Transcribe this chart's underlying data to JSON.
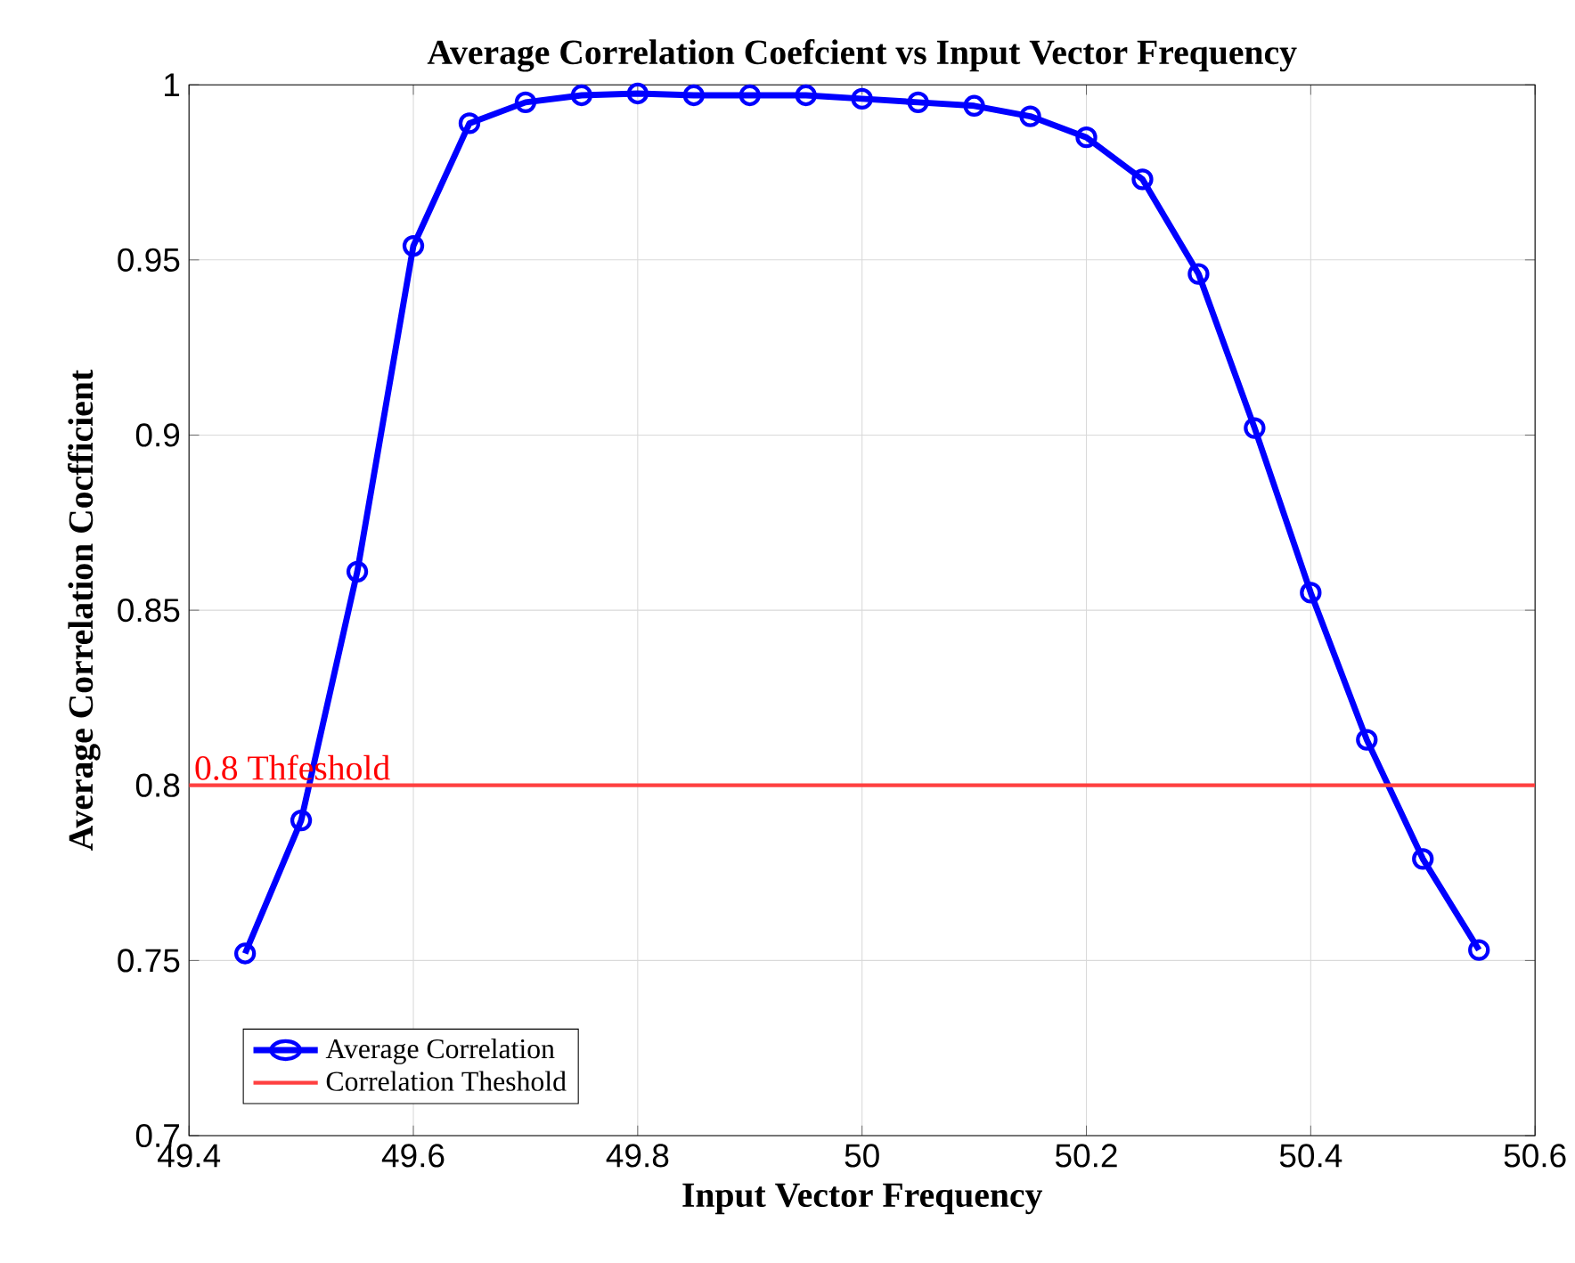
{
  "chart_data": {
    "type": "line",
    "title": "Average Correlation Coefcient vs Input Vector Frequency",
    "xlabel": "Input Vector Frequency",
    "ylabel": "Average Correlation Cocfficient",
    "x": [
      49.45,
      49.5,
      49.55,
      49.6,
      49.65,
      49.7,
      49.75,
      49.8,
      49.85,
      49.9,
      49.95,
      50.0,
      50.05,
      50.1,
      50.15,
      50.2,
      50.25,
      50.3,
      50.35,
      50.4,
      50.45,
      50.5,
      50.55
    ],
    "series": [
      {
        "name": "Average Correlation",
        "color": "#0000ff",
        "marker": "circle",
        "values": [
          0.752,
          0.79,
          0.861,
          0.954,
          0.989,
          0.995,
          0.997,
          0.9975,
          0.997,
          0.997,
          0.997,
          0.996,
          0.995,
          0.994,
          0.991,
          0.985,
          0.973,
          0.946,
          0.902,
          0.855,
          0.813,
          0.779,
          0.753
        ]
      },
      {
        "name": "Correlation Theshold",
        "color": "#ff4040",
        "marker": "none",
        "x": [
          49.4,
          50.6
        ],
        "values": [
          0.8,
          0.8
        ]
      }
    ],
    "annotations": [
      {
        "text": "0.8 Thfeshold",
        "x": 49.4,
        "y": 0.8
      }
    ],
    "xlim": [
      49.4,
      50.6
    ],
    "xticks": [
      49.4,
      49.6,
      49.8,
      50,
      50.2,
      50.4,
      50.6
    ],
    "ylim": [
      0.7,
      1
    ],
    "yticks": [
      0.7,
      0.75,
      0.8,
      0.85,
      0.9,
      0.95,
      1
    ],
    "grid": true,
    "legend": "bottom left",
    "line_style": "solid"
  }
}
